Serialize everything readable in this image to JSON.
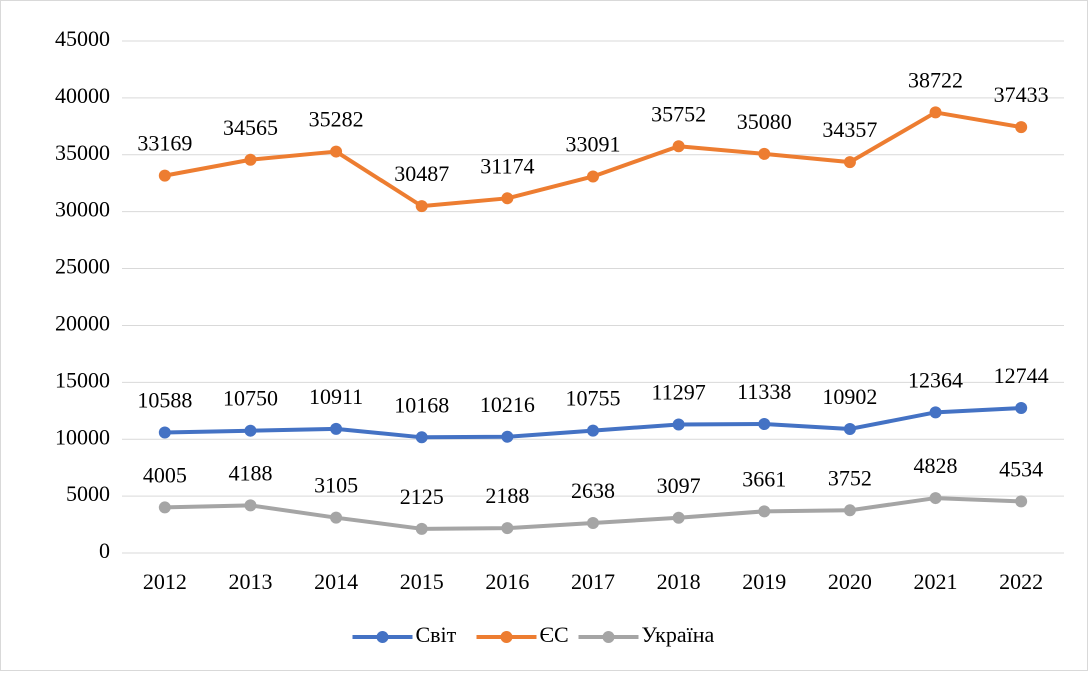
{
  "chart_data": {
    "type": "line",
    "categories": [
      "2012",
      "2013",
      "2014",
      "2015",
      "2016",
      "2017",
      "2018",
      "2019",
      "2020",
      "2021",
      "2022"
    ],
    "series": [
      {
        "name": "Світ",
        "color": "#4472c4",
        "values": [
          10588,
          10750,
          10911,
          10168,
          10216,
          10755,
          11297,
          11338,
          10902,
          12364,
          12744
        ]
      },
      {
        "name": "ЄС",
        "color": "#ed7d31",
        "values": [
          33169,
          34565,
          35282,
          30487,
          31174,
          33091,
          35752,
          35080,
          34357,
          38722,
          37433
        ]
      },
      {
        "name": "Україна",
        "color": "#a5a5a5",
        "values": [
          4005,
          4188,
          3105,
          2125,
          2188,
          2638,
          3097,
          3661,
          3752,
          4828,
          4534
        ]
      }
    ],
    "ylim": [
      0,
      45000
    ],
    "yticks": [
      0,
      5000,
      10000,
      15000,
      20000,
      25000,
      30000,
      35000,
      40000,
      45000
    ],
    "grid": true,
    "legend": "bottom",
    "data_labels": true
  }
}
